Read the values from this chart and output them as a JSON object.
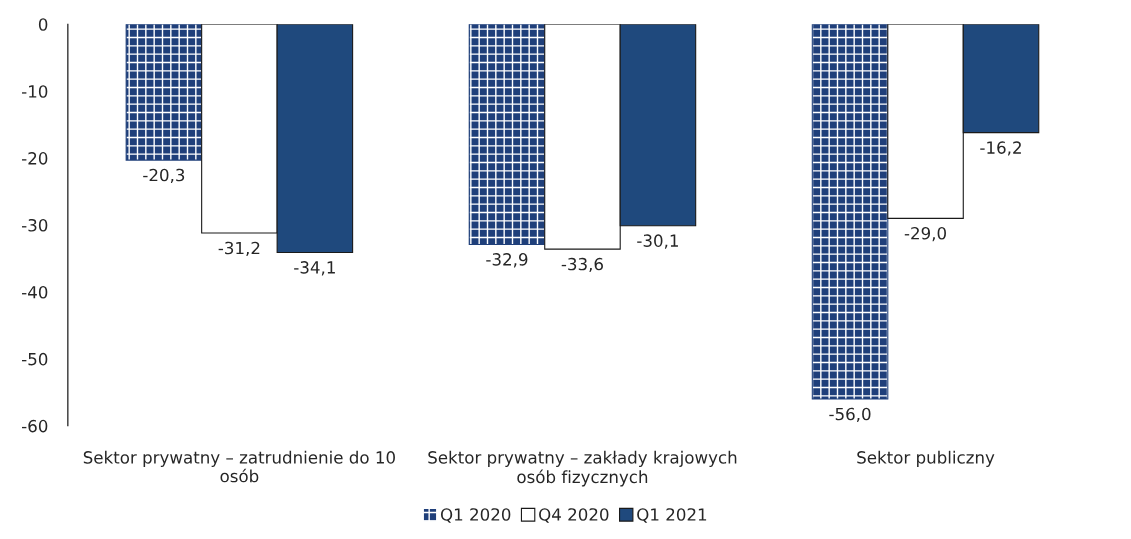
{
  "chart_data": {
    "type": "bar",
    "categories": [
      "Sektor prywatny – zatrudnienie do 10\nosób",
      "Sektor prywatny – zakłady krajowych\nosób fizycznych",
      "Sektor publiczny"
    ],
    "series": [
      {
        "name": "Q1 2020",
        "color": "#1f3f7a",
        "values": [
          -20.3,
          -32.9,
          -56.0
        ],
        "value_labels": [
          "-20,3",
          "-32,9",
          "-56,0"
        ]
      },
      {
        "name": "Q4 2020",
        "color": "#ffffff",
        "values": [
          -31.2,
          -33.6,
          -29.0
        ],
        "value_labels": [
          "-31,2",
          "-33,6",
          "-29,0"
        ]
      },
      {
        "name": "Q1 2021",
        "color": "#1f497d",
        "values": [
          -34.1,
          -30.1,
          -16.2
        ],
        "value_labels": [
          "-34,1",
          "-30,1",
          "-16,2"
        ]
      }
    ],
    "ylim": [
      -60,
      0
    ],
    "yticks": [
      {
        "value": 0,
        "label": "0"
      },
      {
        "value": -10,
        "label": "-10"
      },
      {
        "value": -20,
        "label": "-20"
      },
      {
        "value": -30,
        "label": "-30"
      },
      {
        "value": -40,
        "label": "-40"
      },
      {
        "value": -50,
        "label": "-50"
      },
      {
        "value": -60,
        "label": "-60"
      }
    ],
    "grid": false,
    "legend": "bottom"
  }
}
